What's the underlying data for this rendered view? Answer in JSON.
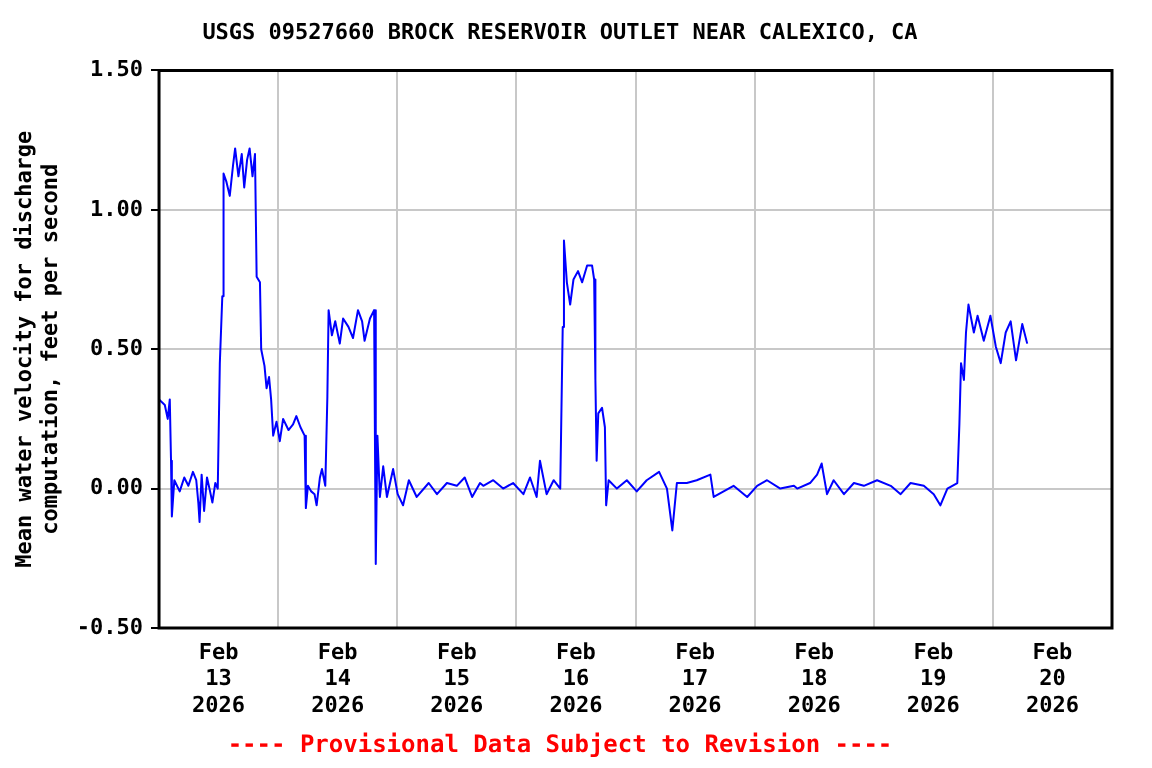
{
  "chart_data": {
    "type": "line",
    "title": "USGS 09527660 BROCK RESERVOIR OUTLET NEAR CALEXICO, CA",
    "ylabel": "Mean water velocity for discharge\ncomputation, feet per second",
    "annotations": [
      "---- Provisional Data Subject to Revision ----"
    ],
    "xlim": [
      "2026-02-13T00:00",
      "2026-02-21T00:00"
    ],
    "xticks": [
      {
        "value": "2026-02-13T12:00",
        "label": "Feb\n13\n2026"
      },
      {
        "value": "2026-02-14T00:00",
        "label": null
      },
      {
        "value": "2026-02-14T12:00",
        "label": "Feb\n14\n2026"
      },
      {
        "value": "2026-02-15T00:00",
        "label": null
      },
      {
        "value": "2026-02-15T12:00",
        "label": "Feb\n15\n2026"
      },
      {
        "value": "2026-02-16T00:00",
        "label": null
      },
      {
        "value": "2026-02-16T12:00",
        "label": "Feb\n16\n2026"
      },
      {
        "value": "2026-02-17T00:00",
        "label": null
      },
      {
        "value": "2026-02-17T12:00",
        "label": "Feb\n17\n2026"
      },
      {
        "value": "2026-02-18T00:00",
        "label": null
      },
      {
        "value": "2026-02-18T12:00",
        "label": "Feb\n18\n2026"
      },
      {
        "value": "2026-02-19T00:00",
        "label": null
      },
      {
        "value": "2026-02-19T12:00",
        "label": "Feb\n19\n2026"
      },
      {
        "value": "2026-02-20T00:00",
        "label": null
      },
      {
        "value": "2026-02-20T12:00",
        "label": "Feb\n20\n2026"
      }
    ],
    "ylim": [
      -0.5,
      1.5
    ],
    "yticks": [
      {
        "value": -0.5,
        "label": "-0.50"
      },
      {
        "value": 0,
        "label": "0.00"
      },
      {
        "value": 0.5,
        "label": "0.50"
      },
      {
        "value": 1,
        "label": "1.00"
      },
      {
        "value": 1.5,
        "label": "1.50"
      }
    ],
    "grid": true,
    "legend": false,
    "marker": "none",
    "line_style": "solid",
    "series": [
      {
        "color": "#0000ff",
        "x": [
          "2026-02-13T00:00",
          "2026-02-13T01:10",
          "2026-02-13T01:45",
          "2026-02-13T02:10",
          "2026-02-13T02:25",
          "2026-02-13T02:35",
          "2026-02-13T03:05",
          "2026-02-13T04:10",
          "2026-02-13T05:05",
          "2026-02-13T05:55",
          "2026-02-13T06:50",
          "2026-02-13T07:30",
          "2026-02-13T07:55",
          "2026-02-13T08:10",
          "2026-02-13T08:35",
          "2026-02-13T09:05",
          "2026-02-13T09:40",
          "2026-02-13T10:10",
          "2026-02-13T10:45",
          "2026-02-13T11:20",
          "2026-02-13T11:50",
          "2026-02-13T12:15",
          "2026-02-13T12:45",
          "2026-02-13T13:00",
          "2026-02-13T13:35",
          "2026-02-13T14:15",
          "2026-02-13T14:55",
          "2026-02-13T15:20",
          "2026-02-13T16:00",
          "2026-02-13T16:40",
          "2026-02-13T17:10",
          "2026-02-13T17:45",
          "2026-02-13T18:15",
          "2026-02-13T18:50",
          "2026-02-13T19:20",
          "2026-02-13T19:40",
          "2026-02-13T20:20",
          "2026-02-13T20:35",
          "2026-02-13T21:15",
          "2026-02-13T21:40",
          "2026-02-13T22:10",
          "2026-02-13T22:35",
          "2026-02-13T23:00",
          "2026-02-13T23:40",
          "2026-02-14T00:20",
          "2026-02-14T01:00",
          "2026-02-14T02:05",
          "2026-02-14T03:00",
          "2026-02-14T03:40",
          "2026-02-14T04:30",
          "2026-02-14T05:20",
          "2026-02-14T05:35",
          "2026-02-14T06:00",
          "2026-02-14T06:40",
          "2026-02-14T07:20",
          "2026-02-14T07:45",
          "2026-02-14T08:25",
          "2026-02-14T08:50",
          "2026-02-14T09:30",
          "2026-02-14T09:55",
          "2026-02-14T10:10",
          "2026-02-14T10:50",
          "2026-02-14T11:30",
          "2026-02-14T12:25",
          "2026-02-14T13:05",
          "2026-02-14T14:10",
          "2026-02-14T15:05",
          "2026-02-14T16:05",
          "2026-02-14T16:55",
          "2026-02-14T17:25",
          "2026-02-14T18:30",
          "2026-02-14T19:20",
          "2026-02-14T19:40",
          "2026-02-14T20:00",
          "2026-02-14T20:30",
          "2026-02-14T21:10",
          "2026-02-14T21:55",
          "2026-02-14T23:10",
          "2026-02-15T00:05",
          "2026-02-15T01:10",
          "2026-02-15T02:20",
          "2026-02-15T03:55",
          "2026-02-15T06:20",
          "2026-02-15T08:00",
          "2026-02-15T10:00",
          "2026-02-15T12:00",
          "2026-02-15T13:35",
          "2026-02-15T15:05",
          "2026-02-15T16:40",
          "2026-02-15T17:20",
          "2026-02-15T19:20",
          "2026-02-15T21:20",
          "2026-02-15T23:20",
          "2026-02-16T01:25",
          "2026-02-16T02:45",
          "2026-02-16T04:05",
          "2026-02-16T04:45",
          "2026-02-16T06:05",
          "2026-02-16T07:30",
          "2026-02-16T08:50",
          "2026-02-16T09:20",
          "2026-02-16T09:35",
          "2026-02-16T10:10",
          "2026-02-16T10:50",
          "2026-02-16T11:30",
          "2026-02-16T12:25",
          "2026-02-16T13:15",
          "2026-02-16T14:15",
          "2026-02-16T15:15",
          "2026-02-16T15:40",
          "2026-02-16T15:55",
          "2026-02-16T16:10",
          "2026-02-16T16:30",
          "2026-02-16T17:15",
          "2026-02-16T17:50",
          "2026-02-16T18:05",
          "2026-02-16T18:35",
          "2026-02-16T20:15",
          "2026-02-16T22:15",
          "2026-02-17T00:15",
          "2026-02-17T02:15",
          "2026-02-17T04:45",
          "2026-02-17T06:20",
          "2026-02-17T07:25",
          "2026-02-17T08:20",
          "2026-02-17T10:20",
          "2026-02-17T12:20",
          "2026-02-17T15:05",
          "2026-02-17T15:45",
          "2026-02-17T17:45",
          "2026-02-17T19:45",
          "2026-02-17T22:30",
          "2026-02-18T00:30",
          "2026-02-18T02:30",
          "2026-02-18T05:10",
          "2026-02-18T07:55",
          "2026-02-18T08:35",
          "2026-02-18T11:10",
          "2026-02-18T12:35",
          "2026-02-18T13:30",
          "2026-02-18T14:35",
          "2026-02-18T15:55",
          "2026-02-18T18:00",
          "2026-02-18T20:00",
          "2026-02-18T22:00",
          "2026-02-19T00:40",
          "2026-02-19T03:25",
          "2026-02-19T05:25",
          "2026-02-19T07:25",
          "2026-02-19T10:05",
          "2026-02-19T12:05",
          "2026-02-19T13:25",
          "2026-02-19T14:50",
          "2026-02-19T16:50",
          "2026-02-19T17:15",
          "2026-02-19T17:35",
          "2026-02-19T18:10",
          "2026-02-19T18:35",
          "2026-02-19T19:05",
          "2026-02-19T20:10",
          "2026-02-19T20:55",
          "2026-02-19T22:10",
          "2026-02-19T23:30",
          "2026-02-20T00:35",
          "2026-02-20T01:35",
          "2026-02-20T02:35",
          "2026-02-20T03:35",
          "2026-02-20T04:40",
          "2026-02-20T05:55",
          "2026-02-20T06:55"
        ],
        "values": [
          0.32,
          0.3,
          0.25,
          0.32,
          0.1,
          -0.1,
          0.03,
          -0.01,
          0.04,
          0.01,
          0.06,
          0.03,
          -0.05,
          -0.12,
          0.05,
          -0.08,
          0.04,
          0.0,
          -0.05,
          0.02,
          0.0,
          0.45,
          0.69,
          1.13,
          1.1,
          1.05,
          1.16,
          1.22,
          1.12,
          1.2,
          1.08,
          1.18,
          1.22,
          1.12,
          1.2,
          0.76,
          0.74,
          0.5,
          0.44,
          0.36,
          0.4,
          0.32,
          0.19,
          0.24,
          0.17,
          0.25,
          0.21,
          0.23,
          0.26,
          0.22,
          0.19,
          -0.07,
          0.01,
          -0.01,
          -0.02,
          -0.06,
          0.04,
          0.07,
          0.01,
          0.33,
          0.64,
          0.55,
          0.6,
          0.52,
          0.61,
          0.58,
          0.54,
          0.64,
          0.6,
          0.53,
          0.61,
          0.64,
          -0.27,
          0.19,
          -0.03,
          0.08,
          -0.03,
          0.07,
          -0.02,
          -0.06,
          0.03,
          -0.03,
          0.02,
          -0.02,
          0.02,
          0.01,
          0.04,
          -0.03,
          0.02,
          0.01,
          0.03,
          0.0,
          0.02,
          -0.02,
          0.04,
          -0.03,
          0.1,
          -0.02,
          0.03,
          0.0,
          0.58,
          0.89,
          0.74,
          0.66,
          0.75,
          0.78,
          0.74,
          0.8,
          0.8,
          0.75,
          0.39,
          0.1,
          0.27,
          0.29,
          0.22,
          -0.06,
          0.03,
          0.0,
          0.03,
          -0.01,
          0.03,
          0.06,
          0.0,
          -0.15,
          0.02,
          0.02,
          0.03,
          0.05,
          -0.03,
          -0.01,
          0.01,
          -0.03,
          0.01,
          0.03,
          0.0,
          0.01,
          0.0,
          0.02,
          0.05,
          0.09,
          -0.02,
          0.03,
          -0.02,
          0.02,
          0.01,
          0.03,
          0.01,
          -0.02,
          0.02,
          0.01,
          -0.02,
          -0.06,
          0.0,
          0.02,
          0.23,
          0.45,
          0.39,
          0.56,
          0.66,
          0.56,
          0.62,
          0.53,
          0.62,
          0.51,
          0.45,
          0.56,
          0.6,
          0.46,
          0.59,
          0.52
        ]
      }
    ]
  }
}
